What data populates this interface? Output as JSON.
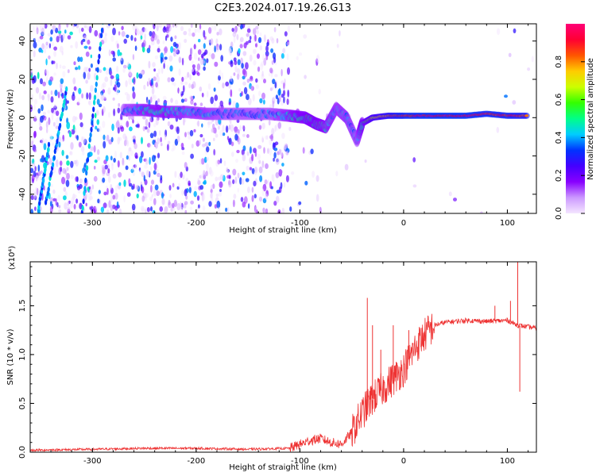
{
  "title": "C2E3.2024.017.19.26.G13",
  "chart_data": [
    {
      "type": "heatmap",
      "name": "spectrogram",
      "xlabel": "Height of straight line (km)",
      "ylabel": "Frequency (Hz)",
      "xlim": [
        -360,
        128
      ],
      "ylim": [
        -50,
        49
      ],
      "xticks": [
        -300,
        -200,
        -100,
        0,
        100
      ],
      "yticks": [
        -40,
        -20,
        0,
        20,
        40
      ],
      "colorbar": {
        "label": "Normalized spectral amplitude",
        "range": [
          0,
          1
        ],
        "ticks": [
          "0.0",
          "0.2",
          "0.4",
          "0.6",
          "0.8"
        ],
        "colors": [
          "#f4e6ff",
          "#cc99ff",
          "#8800ff",
          "#4400ff",
          "#0033ff",
          "#00ccff",
          "#00ff88",
          "#33ff00",
          "#ccff00",
          "#ffcc00",
          "#ff5500",
          "#ff0033",
          "#ff0077"
        ]
      },
      "signal_ridge": [
        {
          "x": -270,
          "y": 4,
          "a": 0.35
        },
        {
          "x": -250,
          "y": 4,
          "a": 0.45
        },
        {
          "x": -230,
          "y": 3,
          "a": 0.45
        },
        {
          "x": -210,
          "y": 3,
          "a": 0.4
        },
        {
          "x": -190,
          "y": 2,
          "a": 0.4
        },
        {
          "x": -170,
          "y": 2,
          "a": 0.35
        },
        {
          "x": -150,
          "y": 2,
          "a": 0.35
        },
        {
          "x": -130,
          "y": 2,
          "a": 0.35
        },
        {
          "x": -110,
          "y": 1,
          "a": 0.45
        },
        {
          "x": -95,
          "y": 0,
          "a": 0.5
        },
        {
          "x": -85,
          "y": -3,
          "a": 0.5
        },
        {
          "x": -75,
          "y": -5,
          "a": 0.45
        },
        {
          "x": -65,
          "y": 5,
          "a": 0.4
        },
        {
          "x": -55,
          "y": 0,
          "a": 0.4
        },
        {
          "x": -45,
          "y": -12,
          "a": 0.35
        },
        {
          "x": -40,
          "y": -3,
          "a": 0.5
        },
        {
          "x": -30,
          "y": 0,
          "a": 0.7
        },
        {
          "x": -15,
          "y": 1,
          "a": 0.8
        },
        {
          "x": 0,
          "y": 1,
          "a": 0.9
        },
        {
          "x": 20,
          "y": 1,
          "a": 0.95
        },
        {
          "x": 40,
          "y": 1,
          "a": 0.95
        },
        {
          "x": 60,
          "y": 1,
          "a": 0.95
        },
        {
          "x": 80,
          "y": 2,
          "a": 0.9
        },
        {
          "x": 100,
          "y": 1,
          "a": 0.9
        },
        {
          "x": 120,
          "y": 1,
          "a": 0.85
        }
      ]
    },
    {
      "type": "line",
      "name": "snr",
      "xlabel": "Height of straight line (km)",
      "ylabel": "SNR (10 * v/v)",
      "y_multiplier_label": "(x10⁴)",
      "xlim": [
        -360,
        128
      ],
      "ylim": [
        0,
        1.95
      ],
      "xticks": [
        -300,
        -200,
        -100,
        0,
        100
      ],
      "yticks": [
        "0.0",
        "0.5",
        "1.0",
        "1.5"
      ],
      "color": "#ee3333",
      "x": [
        -360,
        -300,
        -250,
        -200,
        -150,
        -110,
        -100,
        -90,
        -80,
        -70,
        -60,
        -50,
        -40,
        -30,
        -20,
        -10,
        0,
        10,
        20,
        30,
        40,
        60,
        80,
        100,
        110,
        128
      ],
      "y": [
        0.02,
        0.03,
        0.04,
        0.04,
        0.03,
        0.04,
        0.08,
        0.12,
        0.14,
        0.1,
        0.08,
        0.2,
        0.4,
        0.55,
        0.65,
        0.75,
        0.85,
        1.05,
        1.2,
        1.3,
        1.33,
        1.35,
        1.34,
        1.35,
        1.3,
        1.27
      ],
      "spikes": [
        {
          "x": -35,
          "y": 1.58
        },
        {
          "x": -30,
          "y": 1.3
        },
        {
          "x": -22,
          "y": 1.05
        },
        {
          "x": -10,
          "y": 1.3
        },
        {
          "x": 5,
          "y": 1.25
        },
        {
          "x": 88,
          "y": 1.5
        },
        {
          "x": 103,
          "y": 1.55
        },
        {
          "x": 110,
          "y": 1.95
        },
        {
          "x": 112,
          "y": 0.62
        }
      ]
    }
  ]
}
